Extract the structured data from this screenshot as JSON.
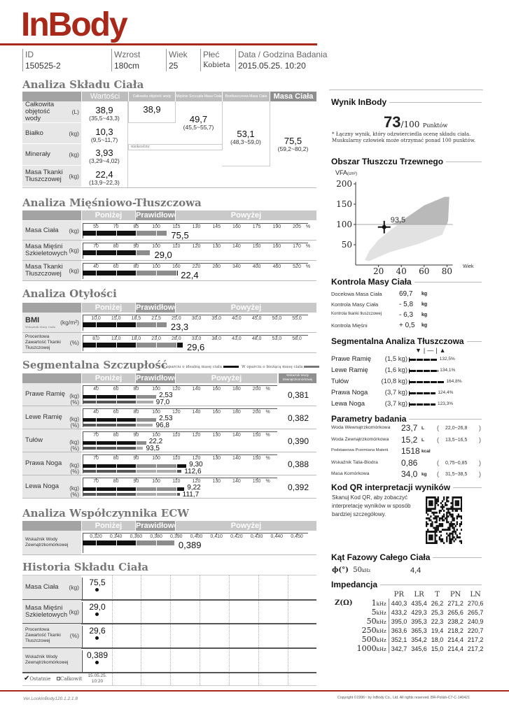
{
  "header": {
    "logo": "InBody",
    "fields": [
      {
        "label": "ID",
        "value": "150525-2"
      },
      {
        "label": "Wzrost",
        "value": "180cm"
      },
      {
        "label": "Wiek",
        "value": "25"
      },
      {
        "label": "Płeć",
        "value": "Kobieta"
      },
      {
        "label": "Data / Godzina Badania",
        "value": "2015.05.25. 10:20"
      }
    ]
  },
  "bands": [
    "Poniżej",
    "Prawidłowo",
    "Powyżej"
  ],
  "body_composition": {
    "title": "Analiza Składu Ciała",
    "col_headers": [
      "Wartości",
      "Całkowita objętość wody",
      "Mięśnie Szczupła Masa Ciała",
      "Beztłuszczowa Masa Ciała",
      "Masa Ciała"
    ],
    "rows": [
      {
        "label": "Całkowita objętość wody",
        "unit": "(L)",
        "value": "38,9",
        "range": "(35,5~43,3)"
      },
      {
        "label": "Białko",
        "unit": "(kg)",
        "value": "10,3",
        "range": "(9,5~11,7)"
      },
      {
        "label": "Minerały",
        "unit": "(kg)",
        "value": "3,93",
        "range": "(3,29~4,02)"
      },
      {
        "label": "Masa Tkanki Tłuszczowej",
        "unit": "(kg)",
        "value": "22,4",
        "range": "(13,9~22,3)"
      }
    ],
    "tbw": "38,9",
    "slm": {
      "value": "49,7",
      "range": "(45,5~55,7)"
    },
    "ffm": {
      "value": "53,1",
      "range": "(48,3~59,0)"
    },
    "weight": {
      "value": "75,5",
      "range": "(59,2~80,2)"
    },
    "nonbone": "niekostny"
  },
  "muscle_fat": {
    "title": "Analiza Mięśniowo-Tłuszczowa",
    "rows": [
      {
        "label": "Masa Ciała",
        "unit": "(kg)",
        "ticks": [
          "55",
          "70",
          "85",
          "100",
          "115",
          "130",
          "145",
          "160",
          "175",
          "190",
          "205"
        ],
        "tick_values": [
          55,
          70,
          85,
          100,
          115,
          130,
          145,
          160,
          175,
          190,
          205
        ],
        "tick_unit": "%",
        "level": 108,
        "value": "75,5"
      },
      {
        "label": "Masa Mięśni Szkieletowych",
        "unit": "(kg)",
        "ticks": [
          "70",
          "80",
          "90",
          "100",
          "110",
          "120",
          "130",
          "140",
          "150",
          "160",
          "170"
        ],
        "tick_values": [
          70,
          80,
          90,
          100,
          110,
          120,
          130,
          140,
          150,
          160,
          170
        ],
        "tick_unit": "%",
        "level": 97,
        "value": "29,0"
      },
      {
        "label": "Masa Tkanki Tłuszczowej",
        "unit": "(kg)",
        "ticks": [
          "40",
          "60",
          "80",
          "100",
          "160",
          "220",
          "280",
          "340",
          "400",
          "460",
          "520"
        ],
        "tick_values": [
          40,
          60,
          80,
          100,
          160,
          220,
          280,
          340,
          400,
          460,
          520
        ],
        "tick_unit": "%",
        "level": 161,
        "value": "22,4"
      }
    ]
  },
  "obesity": {
    "title": "Analiza Otyłości",
    "rows": [
      {
        "label": "BMI",
        "sublabel": "Wskaźnik Masy Ciała",
        "unit": "(kg/m²)",
        "ticks": [
          "10,0",
          "15,0",
          "18,5",
          "21,5",
          "25,0",
          "30,0",
          "35,0",
          "40,0",
          "45,0",
          "50,0",
          "55,0"
        ],
        "tick_values": [
          10,
          15,
          18.5,
          21.5,
          25,
          30,
          35,
          40,
          45,
          50,
          55
        ],
        "tick_unit": "",
        "level": 23.3,
        "value": "23,3"
      },
      {
        "label": "Procentowa Zawartość Tkanki Tłuszczowej",
        "unit": "(%)",
        "ticks": [
          "8,0",
          "13,0",
          "18,0",
          "23,0",
          "28,0",
          "33,0",
          "38,0",
          "43,0",
          "48,0",
          "53,0",
          "58,0"
        ],
        "tick_values": [
          8,
          13,
          18,
          23,
          28,
          33,
          38,
          43,
          48,
          53,
          58
        ],
        "tick_unit": "",
        "level": 29.6,
        "value": "29,6"
      }
    ]
  },
  "segmental_lean": {
    "title": "Segmentalna Szczupłość",
    "legend_ideal": "W oparciu o idealną masę ciała",
    "legend_current": "W oparciu o bieżącą masę ciała",
    "ecw_header": "Wskaźnik Wody Zewnątrzkomórkowej",
    "unit_kg": "(kg)",
    "unit_pct": "(%)",
    "rows": [
      {
        "label": "Prawe Ramię",
        "ticks": [
          "40",
          "60",
          "80",
          "100",
          "120",
          "140",
          "160",
          "180",
          "200"
        ],
        "tick_values": [
          40,
          60,
          80,
          100,
          120,
          140,
          160,
          180,
          200
        ],
        "tick_unit": "%",
        "kg_level": 100,
        "kg": "2,53",
        "pct_level": 97.0,
        "pct": "97,0",
        "ecw": "0,381"
      },
      {
        "label": "Lewe Ramię",
        "ticks": [
          "40",
          "60",
          "80",
          "100",
          "120",
          "140",
          "160",
          "180",
          "200"
        ],
        "tick_values": [
          40,
          60,
          80,
          100,
          120,
          140,
          160,
          180,
          200
        ],
        "tick_unit": "%",
        "kg_level": 100,
        "kg": "2,53",
        "pct_level": 96.8,
        "pct": "96,8",
        "ecw": "0,382"
      },
      {
        "label": "Tułów",
        "ticks": [
          "70",
          "80",
          "90",
          "100",
          "110",
          "120",
          "130",
          "140",
          "150"
        ],
        "tick_values": [
          70,
          80,
          90,
          100,
          110,
          120,
          130,
          140,
          150
        ],
        "tick_unit": "%",
        "kg_level": 95,
        "kg": "22,2",
        "pct_level": 93.5,
        "pct": "93,5",
        "ecw": "0,390"
      },
      {
        "label": "Prawa Noga",
        "ticks": [
          "70",
          "80",
          "90",
          "100",
          "110",
          "120",
          "130",
          "140",
          "150"
        ],
        "tick_values": [
          70,
          80,
          90,
          100,
          110,
          120,
          130,
          140,
          150
        ],
        "tick_unit": "%",
        "kg_level": 115,
        "kg": "9,30",
        "pct_level": 112.6,
        "pct": "112,6",
        "ecw": "0,388"
      },
      {
        "label": "Lewa Noga",
        "ticks": [
          "70",
          "80",
          "90",
          "100",
          "110",
          "120",
          "130",
          "140",
          "150"
        ],
        "tick_values": [
          70,
          80,
          90,
          100,
          110,
          120,
          130,
          140,
          150
        ],
        "tick_unit": "%",
        "kg_level": 114,
        "kg": "9,22",
        "pct_level": 111.7,
        "pct": "111,7",
        "ecw": "0,392"
      }
    ]
  },
  "ecw": {
    "title": "Analiza Współczynnika ECW",
    "rows": [
      {
        "label": "Wskaźnik Wody Zewnątrzkomórkowej",
        "unit": "",
        "ticks": [
          "0,320",
          "0,340",
          "0,360",
          "0,380",
          "0,390",
          "0,400",
          "0,410",
          "0,420",
          "0,430",
          "0,440",
          "0,450"
        ],
        "tick_values": [
          0.32,
          0.34,
          0.36,
          0.38,
          0.39,
          0.4,
          0.41,
          0.42,
          0.43,
          0.44,
          0.45
        ],
        "tick_unit": "",
        "level": 0.389,
        "value": "0,389"
      }
    ]
  },
  "history": {
    "title": "Historia Składu Ciała",
    "rows": [
      {
        "label": "Masa Ciała",
        "unit": "(kg)",
        "value": "75,5"
      },
      {
        "label": "Masa Mięśni Szkieletowych",
        "unit": "(kg)",
        "value": "29,0"
      },
      {
        "label": "Procentowa Zawartość Tkanki Tłuszczowej",
        "unit": "(%)",
        "value": "29,6"
      },
      {
        "label": "Wskaźnik Wody Zewnątrzkomórkowej",
        "unit": "",
        "value": "0,389"
      }
    ],
    "date": "15.05.25.",
    "time": "10:20",
    "recent_label": "Ostatnie",
    "recent_checked": true,
    "total_label": "Całkowit",
    "total_checked": false
  },
  "score": {
    "title": "Wynik InBody",
    "value": "73",
    "max": "/100",
    "unit": "Punktów",
    "note": "* Łączny wynik, który odzwierciedla ocenę składu ciała. Muskularny człowiek może otrzymać ponad 100 punktów."
  },
  "vfa": {
    "title": "Obszar Tłuszczu Trzewnego",
    "ylabel": "VFA",
    "ylabel_unit": "(cm²)",
    "xlabel": "Wiek",
    "y_ticks": [
      50,
      100,
      150,
      200
    ],
    "x_ticks": [
      20,
      40,
      60,
      80
    ],
    "age": 25,
    "value": 93.5,
    "value_label": "93,5"
  },
  "weight_control": {
    "title": "Kontrola Masy Ciała",
    "rows": [
      {
        "label": "Docelowa Masa Ciała",
        "value": "69,7",
        "unit": "kg"
      },
      {
        "label": "Kontrola Masy Ciała",
        "value": "- 5,8",
        "unit": "kg"
      },
      {
        "label": "Kontrola tkanki tłuszczowej",
        "value": "- 6,3",
        "unit": "kg"
      },
      {
        "label": "Kontrola Mięśni",
        "value": "+ 0,5",
        "unit": "kg"
      }
    ]
  },
  "segmental_fat": {
    "title": "Segmentalna Analiza Tłuszczowa",
    "legend": [
      "▼",
      "|",
      "—",
      "|",
      "▲"
    ],
    "rows": [
      {
        "label": "Prawe Ramię",
        "kg": "(1,5 kg)",
        "pct_value": 132.5,
        "pct": "132,5%"
      },
      {
        "label": "Lewe Ramię",
        "kg": "(1,6 kg)",
        "pct_value": 134.1,
        "pct": "134,1%"
      },
      {
        "label": "Tułów",
        "kg": "(10,8 kg)",
        "pct_value": 164.8,
        "pct": "164,8%"
      },
      {
        "label": "Prawa Noga",
        "kg": "(3,7 kg)",
        "pct_value": 124.4,
        "pct": "124,4%"
      },
      {
        "label": "Lewa Noga",
        "kg": "(3,7 kg)",
        "pct_value": 123.3,
        "pct": "123,3%"
      }
    ]
  },
  "params": {
    "title": "Parametry badania",
    "rows": [
      {
        "label": "Woda Wewnątrzkomórkowa",
        "value": "23,7",
        "unit": "L",
        "range": "22,0~26,8"
      },
      {
        "label": "Woda Zewnątrzkomórkowa",
        "value": "15,2",
        "unit": "L",
        "range": "13,5~16,5"
      },
      {
        "label": "Podstawowa Przemiana Materii",
        "value": "1518",
        "unit": "kcal",
        "range": ""
      },
      {
        "label": "Wskaźnik Talia-Biodra",
        "value": "0,86",
        "unit": "",
        "range": "0,75~0,85"
      },
      {
        "label": "Masa Komórkowa",
        "value": "34,0",
        "unit": "kg",
        "range": "31,5~38,5"
      }
    ]
  },
  "qr": {
    "title": "Kod QR interpretacji wyników",
    "text": "Skanuj Kod QR, aby zobaczyć interpretację wyników w sposób bardziej szczegółowy."
  },
  "phase": {
    "title": "Kąt Fazowy Całego Ciała",
    "symbol": "ϕ(°)",
    "freq": "50",
    "freq_unit": "kHz",
    "value": "4,4"
  },
  "impedance": {
    "title": "Impedancja",
    "z_label": "Z(Ω)",
    "columns": [
      "PR",
      "LR",
      "T",
      "PN",
      "LN"
    ],
    "rows": [
      {
        "freq": "1",
        "values": [
          "440,3",
          "435,4",
          "26,2",
          "271,2",
          "270,6"
        ]
      },
      {
        "freq": "5",
        "values": [
          "433,2",
          "429,3",
          "25,3",
          "265,6",
          "265,7"
        ]
      },
      {
        "freq": "50",
        "values": [
          "395,0",
          "395,3",
          "22,3",
          "238,2",
          "240,9"
        ]
      },
      {
        "freq": "250",
        "values": [
          "363,6",
          "365,3",
          "19,4",
          "218,2",
          "220,7"
        ]
      },
      {
        "freq": "500",
        "values": [
          "352,1",
          "354,2",
          "18,0",
          "214,4",
          "217,2"
        ]
      },
      {
        "freq": "1000",
        "values": [
          "342,7",
          "345,6",
          "15,0",
          "214,4",
          "217,2"
        ]
      }
    ],
    "unit": "kHz"
  },
  "footer": {
    "version": "Ver.LookinBody120.1.2.1.8",
    "copyright": "Copyright ©1996~ by InBody Co., Ltd. All rights reserved. BR-Polish-C7-C-140421"
  },
  "colors": {
    "brand": "#a8281a",
    "bar_dark": "#111111",
    "bar_normal": "#8c8c8c",
    "band": "#c9c9c9",
    "band_normal": "#9a9a9a"
  }
}
